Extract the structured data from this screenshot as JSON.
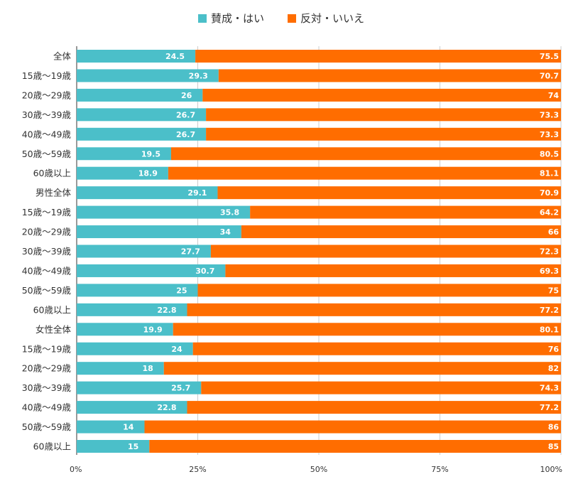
{
  "chart_data": {
    "type": "bar",
    "orientation": "horizontal",
    "stacked": true,
    "percent_axis": true,
    "title": "",
    "xlabel": "",
    "ylabel": "",
    "xlim": [
      0,
      100
    ],
    "x_ticks": [
      "0%",
      "25%",
      "50%",
      "75%",
      "100%"
    ],
    "grid": true,
    "legend_position": "top",
    "categories": [
      "全体",
      "15歳～19歳",
      "20歳～29歳",
      "30歳～39歳",
      "40歳～49歳",
      "50歳～59歳",
      "60歳以上",
      "男性全体",
      "15歳～19歳",
      "20歳～29歳",
      "30歳～39歳",
      "40歳～49歳",
      "50歳～59歳",
      "60歳以上",
      "女性全体",
      "15歳～19歳",
      "20歳～29歳",
      "30歳～39歳",
      "40歳～49歳",
      "50歳～59歳",
      "60歳以上"
    ],
    "series": [
      {
        "name": "賛成・はい",
        "color": "#4BBFC9",
        "values": [
          24.5,
          29.3,
          26,
          26.7,
          26.7,
          19.5,
          18.9,
          29.1,
          35.8,
          34,
          27.7,
          30.7,
          25,
          22.8,
          19.9,
          24,
          18,
          25.7,
          22.8,
          14,
          15
        ]
      },
      {
        "name": "反対・いいえ",
        "color": "#FF6D00",
        "values": [
          75.5,
          70.7,
          74,
          73.3,
          73.3,
          80.5,
          81.1,
          70.9,
          64.2,
          66,
          72.3,
          69.3,
          75,
          77.2,
          80.1,
          76,
          82,
          74.3,
          77.2,
          86,
          85
        ]
      }
    ]
  }
}
